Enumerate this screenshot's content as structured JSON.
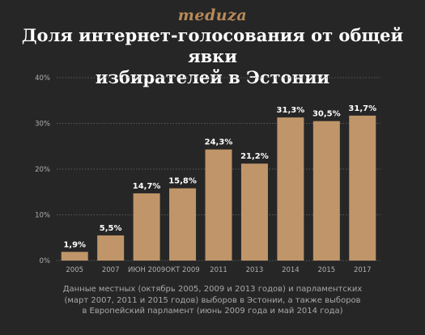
{
  "header": {
    "logo": "meduza",
    "title_line1": "Доля интернет-голосования от общей явки",
    "title_line2": "избирателей в Эстонии"
  },
  "chart_data": {
    "type": "bar",
    "title": "Доля интернет-голосования от общей явки избирателей в Эстонии",
    "categories": [
      "2005",
      "2007",
      "ИЮН 2009",
      "ОКТ 2009",
      "2011",
      "2013",
      "2014",
      "2015",
      "2017"
    ],
    "values": [
      1.9,
      5.5,
      14.7,
      15.8,
      24.3,
      21.2,
      31.3,
      30.5,
      31.7
    ],
    "value_labels": [
      "1,9%",
      "5,5%",
      "14,7%",
      "15,8%",
      "24,3%",
      "21,2%",
      "31,3%",
      "30,5%",
      "31,7%"
    ],
    "yticks": [
      0,
      10,
      20,
      30,
      40
    ],
    "ytick_labels": [
      "0%",
      "10%",
      "20%",
      "30%",
      "40%"
    ],
    "ylim": [
      0,
      40
    ],
    "grid": true,
    "xlabel": "",
    "ylabel": ""
  },
  "footnote": {
    "line1": "Данные местных (октябрь 2005, 2009 и 2013 годов) и парламентских",
    "line2": "(март 2007, 2011 и 2015 годов) выборов в Эстонии, а также выборов",
    "line3": "в Европейский парламент (июнь 2009 года и май 2014 года)"
  },
  "colors": {
    "background": "#262626",
    "bar": "#c09569",
    "logo": "#b88a58",
    "grid": "#5a5a5a",
    "axis_text": "#b0b0b0",
    "footnote": "#a8a8a8"
  }
}
